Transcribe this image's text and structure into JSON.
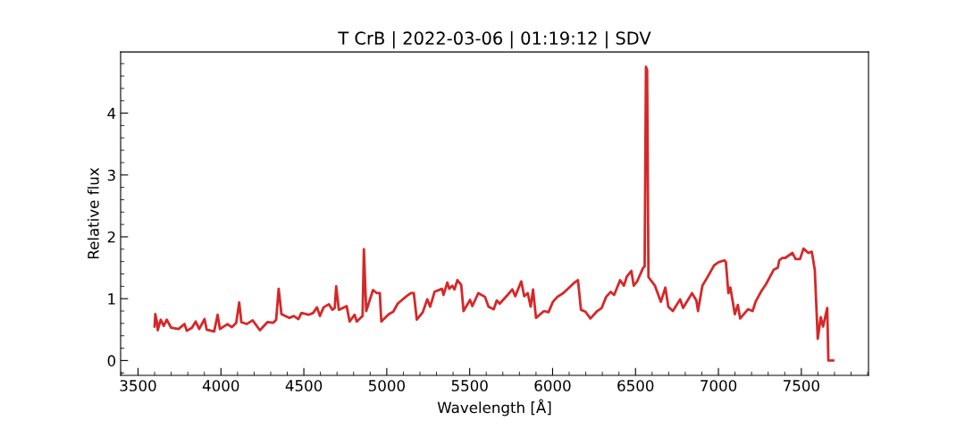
{
  "chart_data": {
    "type": "line",
    "title": "T CrB | 2022-03-06 | 01:19:12 | SDV",
    "xlabel": "Wavelength [Å]",
    "ylabel": "Relative flux",
    "xlim": [
      3395,
      7905
    ],
    "ylim": [
      -0.24,
      4.99
    ],
    "xticks": [
      3500,
      4000,
      4500,
      5000,
      5500,
      6000,
      6500,
      7000,
      7500
    ],
    "yticks": [
      0,
      1,
      2,
      3,
      4
    ],
    "grid": false,
    "legend": false,
    "marker": "none",
    "line_style": "solid",
    "series": [
      {
        "color": "#d62728",
        "x": [
          3600,
          3604,
          3616,
          3619,
          3637,
          3655,
          3673,
          3700,
          3744,
          3780,
          3794,
          3825,
          3848,
          3869,
          3901,
          3914,
          3959,
          3980,
          3994,
          4039,
          4066,
          4092,
          4110,
          4123,
          4155,
          4191,
          4235,
          4280,
          4316,
          4333,
          4348,
          4365,
          4413,
          4440,
          4467,
          4485,
          4529,
          4556,
          4579,
          4597,
          4619,
          4651,
          4672,
          4686,
          4695,
          4711,
          4758,
          4776,
          4806,
          4819,
          4854,
          4862,
          4876,
          4917,
          4940,
          4958,
          4967,
          5012,
          5039,
          5066,
          5119,
          5146,
          5163,
          5181,
          5217,
          5244,
          5262,
          5288,
          5333,
          5342,
          5365,
          5377,
          5395,
          5408,
          5426,
          5449,
          5463,
          5502,
          5516,
          5552,
          5592,
          5614,
          5645,
          5663,
          5681,
          5725,
          5757,
          5775,
          5811,
          5829,
          5850,
          5868,
          5882,
          5900,
          5948,
          5975,
          6002,
          6029,
          6064,
          6100,
          6127,
          6153,
          6171,
          6198,
          6228,
          6269,
          6296,
          6323,
          6350,
          6371,
          6407,
          6430,
          6448,
          6475,
          6489,
          6510,
          6546,
          6555,
          6563,
          6570,
          6578,
          6617,
          6653,
          6680,
          6698,
          6725,
          6769,
          6787,
          6841,
          6867,
          6877,
          6903,
          6930,
          6974,
          7001,
          7037,
          7045,
          7060,
          7072,
          7099,
          7117,
          7131,
          7179,
          7206,
          7224,
          7256,
          7286,
          7334,
          7358,
          7367,
          7385,
          7403,
          7447,
          7465,
          7492,
          7513,
          7542,
          7563,
          7581,
          7599,
          7617,
          7631,
          7656,
          7663,
          7692
        ],
        "values": [
          0.55,
          0.75,
          0.6,
          0.49,
          0.66,
          0.56,
          0.66,
          0.53,
          0.51,
          0.59,
          0.48,
          0.53,
          0.63,
          0.51,
          0.67,
          0.5,
          0.47,
          0.74,
          0.51,
          0.59,
          0.54,
          0.61,
          0.94,
          0.62,
          0.59,
          0.65,
          0.49,
          0.62,
          0.61,
          0.66,
          1.16,
          0.75,
          0.69,
          0.72,
          0.67,
          0.77,
          0.74,
          0.77,
          0.86,
          0.72,
          0.86,
          0.91,
          0.82,
          0.85,
          1.2,
          0.82,
          0.88,
          0.63,
          0.74,
          0.63,
          0.72,
          1.8,
          0.8,
          1.14,
          1.09,
          1.09,
          0.63,
          0.75,
          0.79,
          0.92,
          1.04,
          1.09,
          1.09,
          0.66,
          0.78,
          0.99,
          0.87,
          1.11,
          1.16,
          1.06,
          1.26,
          1.16,
          1.21,
          1.15,
          1.3,
          1.22,
          0.8,
          0.98,
          0.88,
          1.09,
          1.03,
          0.87,
          0.83,
          0.97,
          0.92,
          1.05,
          1.15,
          1.04,
          1.28,
          1.04,
          1.09,
          0.87,
          1.15,
          0.69,
          0.8,
          0.78,
          0.95,
          1.03,
          1.09,
          1.18,
          1.25,
          1.3,
          0.82,
          0.79,
          0.68,
          0.8,
          0.85,
          1.03,
          1.11,
          1.06,
          1.3,
          1.21,
          1.36,
          1.45,
          1.21,
          1.28,
          1.5,
          1.52,
          4.75,
          4.7,
          1.35,
          1.21,
          0.95,
          1.18,
          0.87,
          0.8,
          0.99,
          0.85,
          1.09,
          0.97,
          0.8,
          1.21,
          1.33,
          1.54,
          1.59,
          1.62,
          1.59,
          1.09,
          1.18,
          0.75,
          0.9,
          0.68,
          0.83,
          0.8,
          0.95,
          1.11,
          1.23,
          1.47,
          1.5,
          1.62,
          1.66,
          1.66,
          1.74,
          1.64,
          1.64,
          1.81,
          1.74,
          1.76,
          1.47,
          0.35,
          0.7,
          0.55,
          0.85,
          0.0,
          0.0
        ]
      }
    ]
  }
}
